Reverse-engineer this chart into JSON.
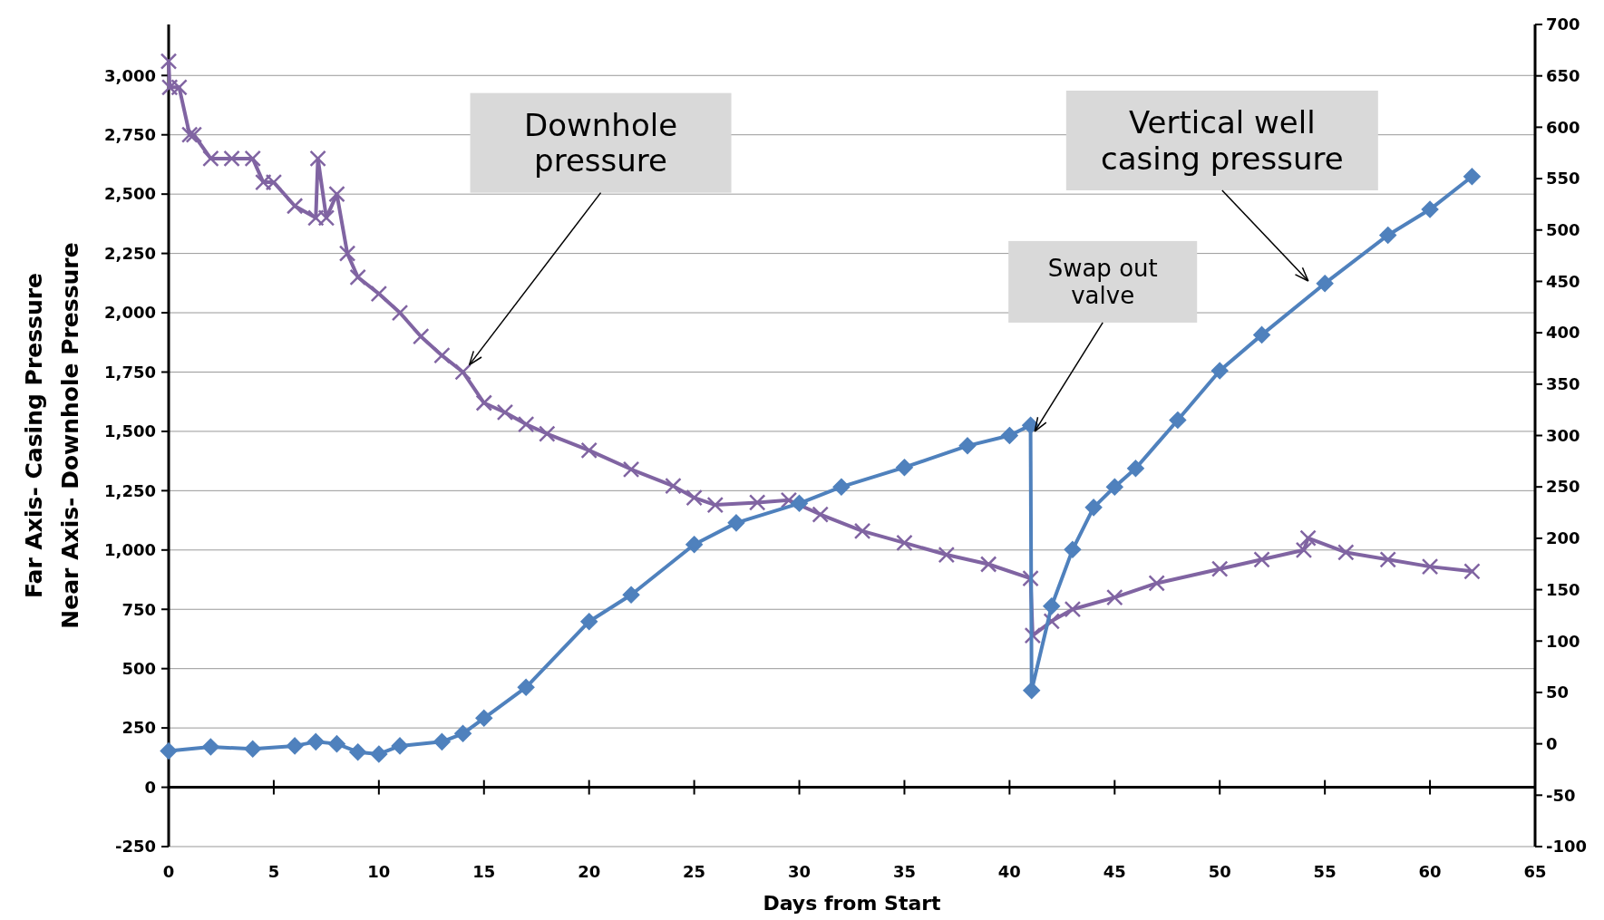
{
  "chart_data": {
    "type": "line",
    "xlabel": "Days from Start",
    "ylabel": "Far Axis- Casing Pressure\nNear Axis- Downhole Pressure",
    "xlim": [
      0,
      65
    ],
    "xticks": [
      0,
      5,
      10,
      15,
      20,
      25,
      30,
      35,
      40,
      45,
      50,
      55,
      60,
      65
    ],
    "ylim": [
      -250,
      3215
    ],
    "yticks": [
      -250,
      0,
      250,
      500,
      750,
      {
        "value": 1000,
        "label": "1,000"
      },
      {
        "value": 1250,
        "label": "1,250"
      },
      {
        "value": 1500,
        "label": "1,500"
      },
      {
        "value": 1750,
        "label": "1,750"
      },
      {
        "value": 2000,
        "label": "2,000"
      },
      {
        "value": 2250,
        "label": "2,250"
      },
      {
        "value": 2500,
        "label": "2,500"
      },
      {
        "value": 2750,
        "label": "2,750"
      },
      {
        "value": 3000,
        "label": "3,000"
      }
    ],
    "y2lim": [
      -100,
      700
    ],
    "y2ticks": [
      -100,
      -50,
      0,
      50,
      100,
      150,
      200,
      250,
      300,
      350,
      400,
      450,
      500,
      550,
      600,
      650,
      700
    ],
    "grid": "y",
    "series": [
      {
        "color": "#8064a2",
        "marker": "cross",
        "x": [
          0,
          0.05,
          0.5,
          1,
          1.2,
          2,
          3,
          4,
          4.5,
          5,
          6,
          7,
          7.1,
          7.5,
          8,
          8.5,
          9,
          10,
          11,
          12,
          13,
          14,
          15,
          16,
          17,
          18,
          20,
          22,
          24,
          25,
          26,
          28,
          29.5,
          31,
          33,
          35,
          37,
          39,
          41,
          41.1,
          42,
          43,
          45,
          47,
          50,
          52,
          54,
          54.2,
          56,
          58,
          60,
          62
        ],
        "values": [
          3060,
          2950,
          2950,
          2750,
          2750,
          2650,
          2650,
          2650,
          2550,
          2550,
          2450,
          2400,
          2650,
          2400,
          2500,
          2250,
          2150,
          2080,
          2000,
          1900,
          1820,
          1750,
          1620,
          1580,
          1530,
          1490,
          1420,
          1340,
          1270,
          1220,
          1190,
          1200,
          1210,
          1150,
          1080,
          1030,
          980,
          940,
          880,
          640,
          700,
          750,
          800,
          860,
          920,
          960,
          1000,
          1050,
          990,
          960,
          930,
          910
        ]
      },
      {
        "color": "#4f81bd",
        "marker": "diamond",
        "axis": "y2",
        "x": [
          0,
          2,
          4,
          6,
          7,
          8,
          9,
          10,
          11,
          13,
          14,
          15,
          17,
          20,
          22,
          25,
          27,
          30,
          32,
          35,
          38,
          40,
          41,
          41.05,
          42,
          43,
          44,
          45,
          46,
          48,
          50,
          52,
          55,
          58,
          60,
          62
        ],
        "values": [
          -7,
          -3,
          -5,
          -2,
          2,
          0,
          -8,
          -10,
          -2,
          2,
          10,
          25,
          55,
          119,
          145,
          194,
          215,
          234,
          250,
          269,
          290,
          300,
          310,
          52,
          134,
          189,
          230,
          250,
          268,
          315,
          363,
          398,
          448,
          495,
          520,
          552
        ]
      }
    ],
    "annotations": [
      {
        "text": "Downhole\npressure",
        "x": 14.3,
        "y": 1780
      },
      "Vertical well\ncasing pressure",
      {
        "text": "Swap out\nvalve",
        "x": 41.2,
        "y": 1500
      }
    ]
  }
}
